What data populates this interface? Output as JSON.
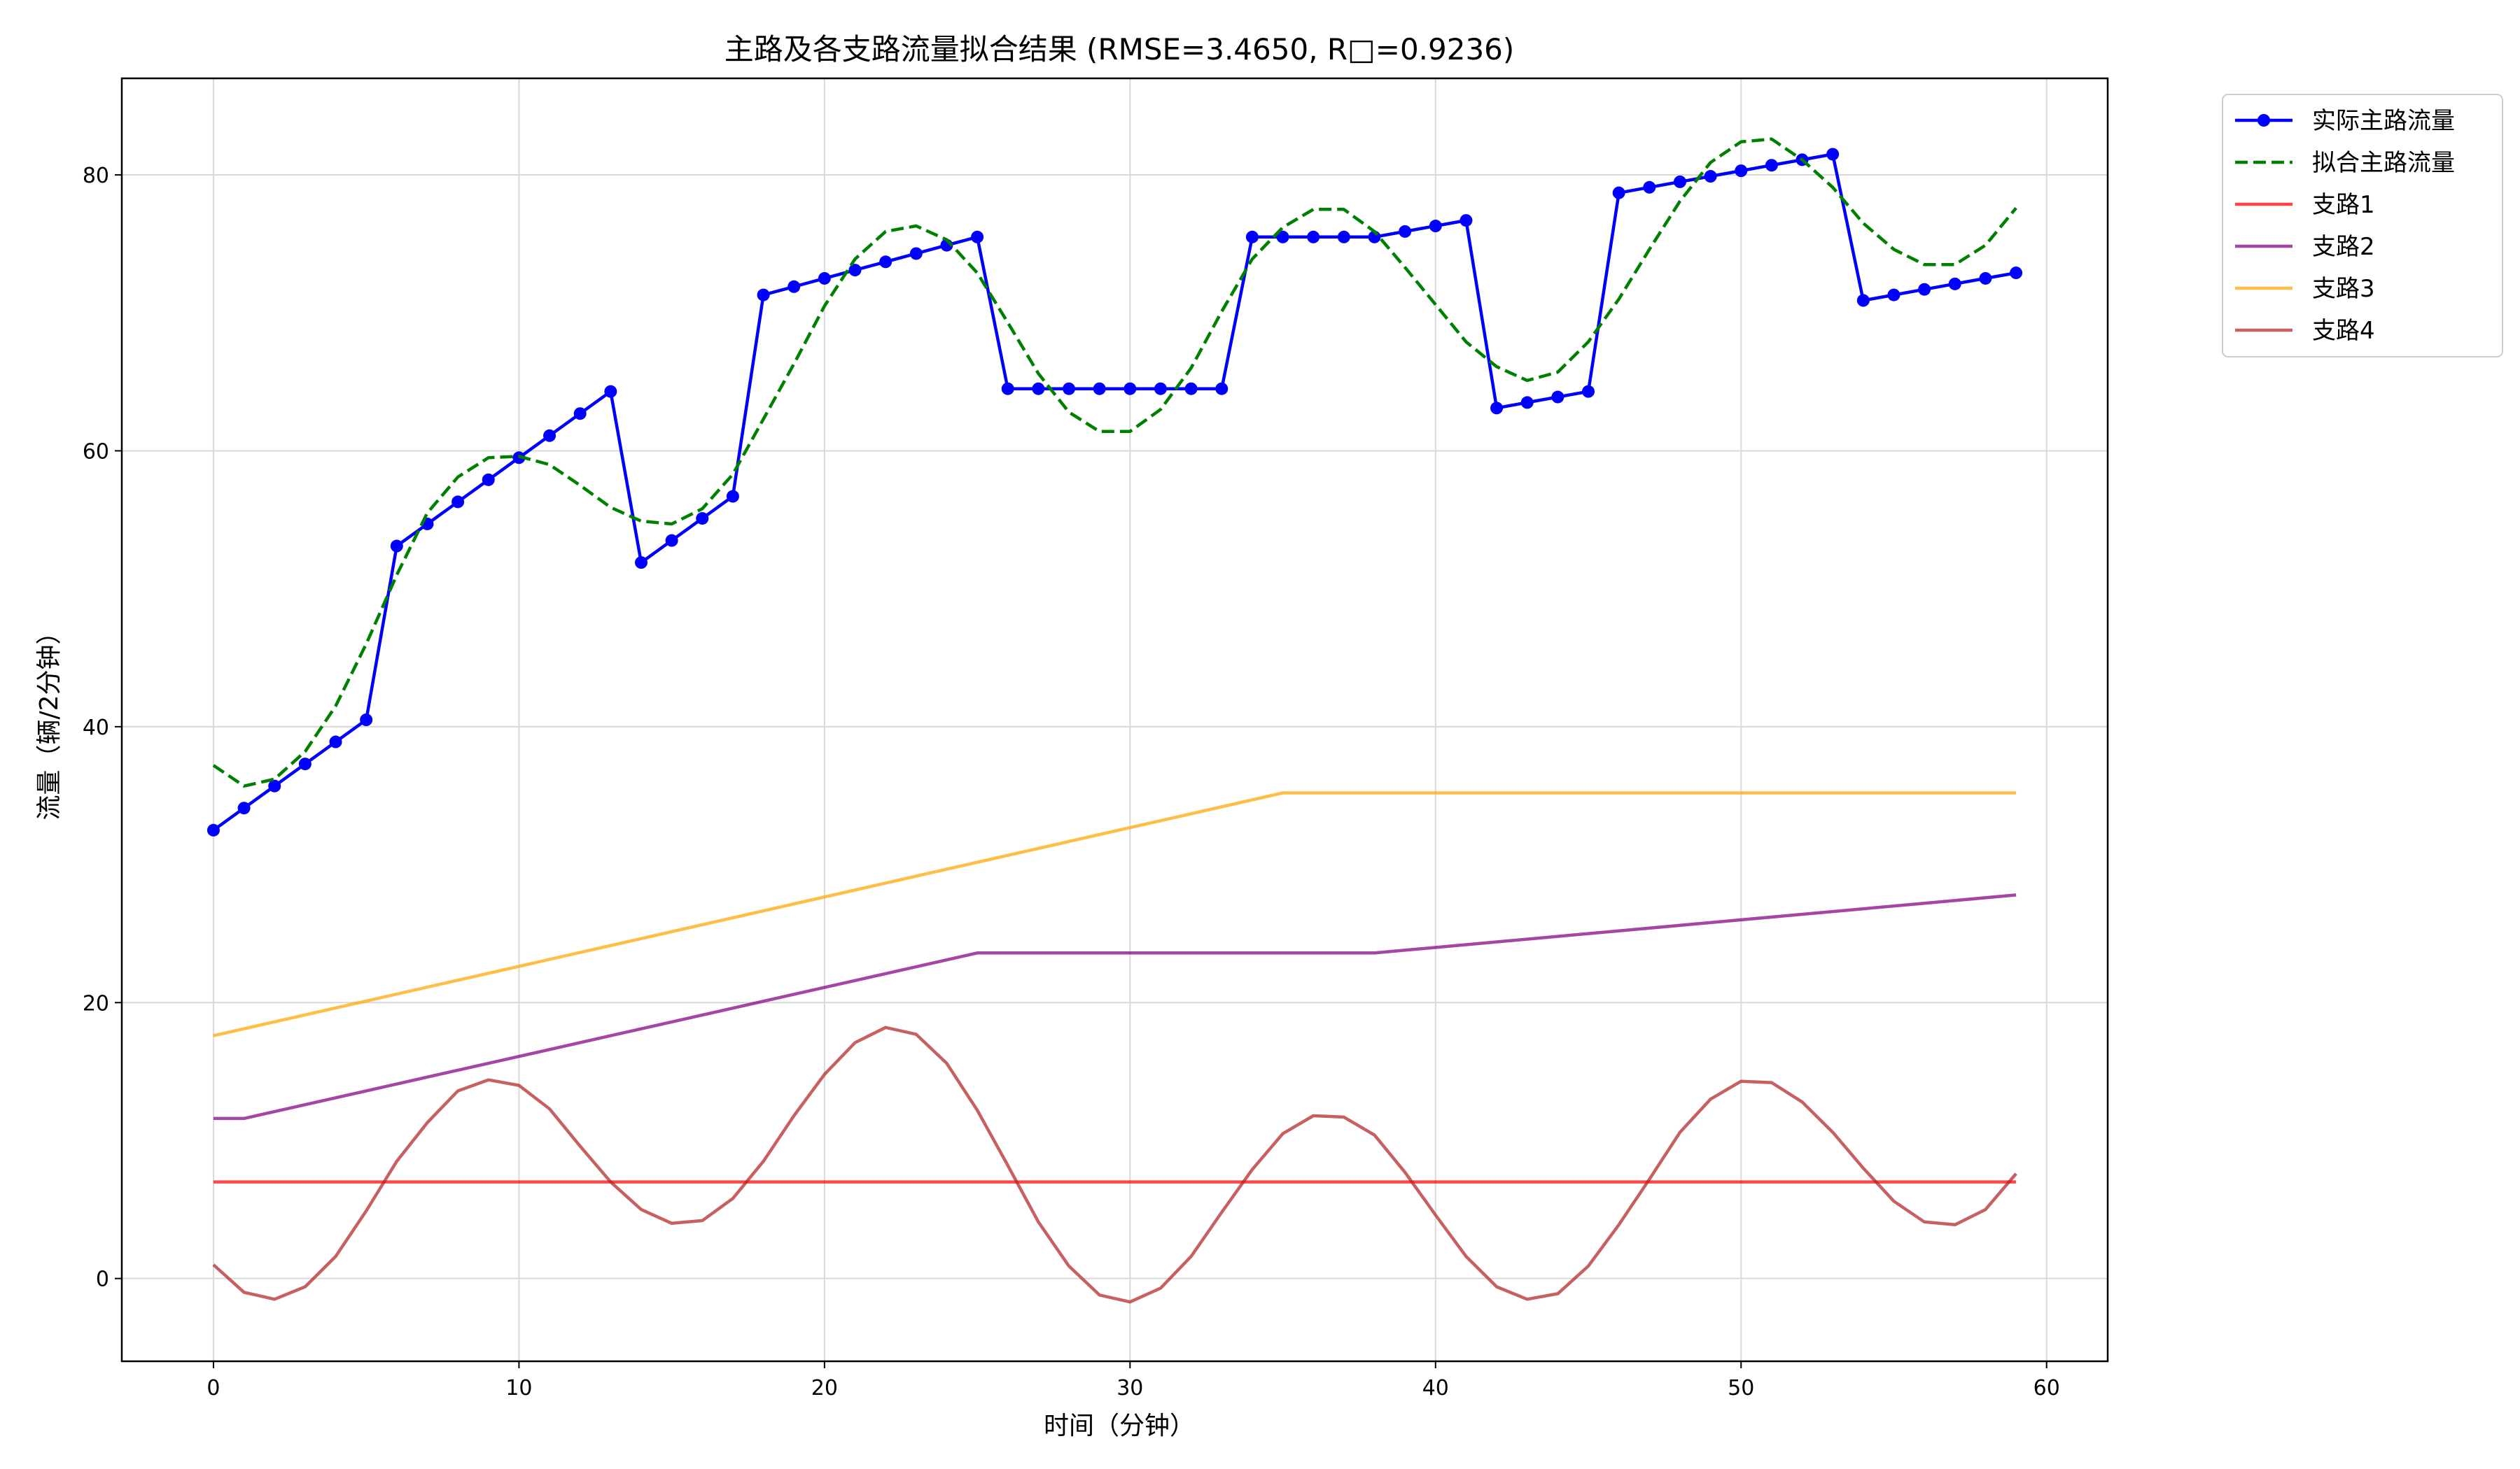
{
  "chart_data": {
    "type": "line",
    "title": "主路及各支路流量拟合结果 (RMSE=3.4650, R□=0.9236)",
    "xlabel": "时间（分钟）",
    "ylabel": "流量（辆/2分钟）",
    "xlim": [
      -3,
      62
    ],
    "ylim": [
      -6,
      87
    ],
    "xticks": [
      0,
      10,
      20,
      30,
      40,
      50,
      60
    ],
    "yticks": [
      0,
      20,
      40,
      60,
      80
    ],
    "grid": true,
    "legend_position": "outside-top-right",
    "series": [
      {
        "name": "实际主路流量",
        "color": "#0000ff",
        "style": "solid-markers",
        "x": [
          0,
          1,
          2,
          3,
          4,
          5,
          6,
          7,
          8,
          9,
          10,
          11,
          12,
          13,
          14,
          15,
          16,
          17,
          18,
          19,
          20,
          21,
          22,
          23,
          24,
          25,
          26,
          27,
          28,
          29,
          30,
          31,
          32,
          33,
          34,
          35,
          36,
          37,
          38,
          39,
          40,
          41,
          42,
          43,
          44,
          45,
          46,
          47,
          48,
          49,
          50,
          51,
          52,
          53,
          54,
          55,
          56,
          57,
          58,
          59
        ],
        "values": [
          32.5,
          34.1,
          35.7,
          37.3,
          38.9,
          40.5,
          53.1,
          54.7,
          56.3,
          57.9,
          59.5,
          61.1,
          62.7,
          64.3,
          51.9,
          53.5,
          55.1,
          56.7,
          71.3,
          71.9,
          72.5,
          73.1,
          73.7,
          74.3,
          74.9,
          75.5,
          64.5,
          64.5,
          64.5,
          64.5,
          64.5,
          64.5,
          64.5,
          64.5,
          75.5,
          75.5,
          75.5,
          75.5,
          75.5,
          75.9,
          76.3,
          76.7,
          63.1,
          63.5,
          63.9,
          64.3,
          78.7,
          79.1,
          79.5,
          79.9,
          80.3,
          80.7,
          81.1,
          81.5,
          70.9,
          71.3,
          71.7,
          72.1,
          72.5,
          72.9
        ]
      },
      {
        "name": "拟合主路流量",
        "color": "#008000",
        "style": "dashed",
        "x": [
          0,
          1,
          2,
          3,
          4,
          5,
          6,
          7,
          8,
          9,
          10,
          11,
          12,
          13,
          14,
          15,
          16,
          17,
          18,
          19,
          20,
          21,
          22,
          23,
          24,
          25,
          26,
          27,
          28,
          29,
          30,
          31,
          32,
          33,
          34,
          35,
          36,
          37,
          38,
          39,
          40,
          41,
          42,
          43,
          44,
          45,
          46,
          47,
          48,
          49,
          50,
          51,
          52,
          53,
          54,
          55,
          56,
          57,
          58,
          59
        ],
        "values": [
          37.2,
          35.7,
          36.2,
          38.2,
          41.5,
          46.0,
          51.0,
          55.5,
          58.1,
          59.5,
          59.6,
          59.0,
          57.5,
          55.9,
          54.9,
          54.7,
          55.8,
          58.3,
          62.3,
          66.3,
          70.5,
          73.9,
          75.9,
          76.3,
          75.3,
          72.9,
          69.3,
          65.6,
          62.8,
          61.4,
          61.4,
          63.0,
          66.0,
          70.1,
          73.9,
          76.2,
          77.5,
          77.5,
          75.9,
          73.3,
          70.6,
          67.9,
          66.1,
          65.1,
          65.7,
          67.9,
          71.0,
          74.6,
          78.1,
          80.9,
          82.4,
          82.6,
          81.1,
          79.1,
          76.5,
          74.6,
          73.5,
          73.5,
          74.9,
          77.6
        ]
      },
      {
        "name": "支路1",
        "color": "#ff0000",
        "style": "solid",
        "x": [
          0,
          59
        ],
        "values": [
          7,
          7
        ]
      },
      {
        "name": "支路2",
        "color": "#800080",
        "style": "solid",
        "x": [
          0,
          1,
          25,
          38,
          59
        ],
        "values": [
          11.6,
          11.6,
          23.6,
          23.6,
          27.8
        ]
      },
      {
        "name": "支路3",
        "color": "#ffa500",
        "style": "solid",
        "x": [
          0,
          35,
          59
        ],
        "values": [
          17.6,
          35.2,
          35.2
        ]
      },
      {
        "name": "支路4",
        "color": "#b22222",
        "style": "solid",
        "x": [
          0,
          1,
          2,
          3,
          4,
          5,
          6,
          7,
          8,
          9,
          10,
          11,
          12,
          13,
          14,
          15,
          16,
          17,
          18,
          19,
          20,
          21,
          22,
          23,
          24,
          25,
          26,
          27,
          28,
          29,
          30,
          31,
          32,
          33,
          34,
          35,
          36,
          37,
          38,
          39,
          40,
          41,
          42,
          43,
          44,
          45,
          46,
          47,
          48,
          49,
          50,
          51,
          52,
          53,
          54,
          55,
          56,
          57,
          58,
          59
        ],
        "values": [
          1.0,
          -1.0,
          -1.5,
          -0.6,
          1.6,
          4.9,
          8.5,
          11.3,
          13.6,
          14.4,
          14.0,
          12.3,
          9.6,
          7.0,
          5.0,
          4.0,
          4.2,
          5.8,
          8.5,
          11.8,
          14.8,
          17.1,
          18.2,
          17.7,
          15.6,
          12.2,
          8.2,
          4.1,
          0.9,
          -1.2,
          -1.7,
          -0.7,
          1.6,
          4.8,
          7.9,
          10.5,
          11.8,
          11.7,
          10.4,
          7.7,
          4.6,
          1.6,
          -0.6,
          -1.5,
          -1.1,
          0.9,
          3.9,
          7.2,
          10.6,
          13.0,
          14.3,
          14.2,
          12.8,
          10.6,
          8.0,
          5.6,
          4.1,
          3.9,
          5.0,
          7.6
        ]
      }
    ]
  }
}
